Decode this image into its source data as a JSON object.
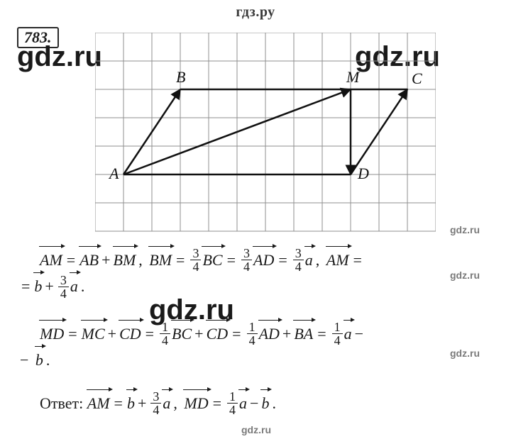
{
  "header": "гдз.ру",
  "problem_number": "783.",
  "watermarks": {
    "big": "gdz.ru",
    "small": "gdz.ru"
  },
  "diagram": {
    "grid": {
      "cell": 40,
      "cols": 12,
      "rows": 7,
      "stroke": "#8f8f8f",
      "stroke_width": 1
    },
    "points": {
      "A": {
        "x": 1.0,
        "y": 5.0,
        "label": "A",
        "labelPos": "left"
      },
      "B": {
        "x": 3.0,
        "y": 2.0,
        "label": "B",
        "labelPos": "top"
      },
      "M": {
        "x": 9.0,
        "y": 2.0,
        "label": "M",
        "labelPos": "top"
      },
      "C": {
        "x": 11.0,
        "y": 2.0,
        "label": "C",
        "labelPos": "topright"
      },
      "D": {
        "x": 9.0,
        "y": 5.0,
        "label": "D",
        "labelPos": "right"
      }
    },
    "edges": [
      {
        "from": "A",
        "to": "B",
        "arrow": true
      },
      {
        "from": "B",
        "to": "M",
        "arrow": false
      },
      {
        "from": "M",
        "to": "C",
        "arrow": false
      },
      {
        "from": "A",
        "to": "M",
        "arrow": true
      },
      {
        "from": "M",
        "to": "D",
        "arrow": true
      },
      {
        "from": "A",
        "to": "D",
        "arrow": false
      },
      {
        "from": "D",
        "to": "C",
        "arrow": true
      }
    ],
    "stroke": "#111111",
    "stroke_width": 2.5,
    "label_font": "italic 22px Times New Roman",
    "label_color": "#111111"
  },
  "math": {
    "line1": {
      "tokens": [
        {
          "t": "indent"
        },
        {
          "t": "vec",
          "v": "AM"
        },
        {
          "t": "eq",
          "v": "="
        },
        {
          "t": "vec",
          "v": "AB"
        },
        {
          "t": "op",
          "v": "+"
        },
        {
          "t": "vec",
          "v": "BM"
        },
        {
          "t": "op",
          "v": ","
        },
        {
          "t": "space"
        },
        {
          "t": "vec",
          "v": "BM"
        },
        {
          "t": "eq",
          "v": "="
        },
        {
          "t": "frac",
          "n": "3",
          "d": "4"
        },
        {
          "t": "vec",
          "v": "BC"
        },
        {
          "t": "eq",
          "v": "="
        },
        {
          "t": "frac",
          "n": "3",
          "d": "4"
        },
        {
          "t": "vec",
          "v": "AD"
        },
        {
          "t": "eq",
          "v": "="
        },
        {
          "t": "frac",
          "n": "3",
          "d": "4"
        },
        {
          "t": "vec",
          "v": "a"
        },
        {
          "t": "op",
          "v": ","
        },
        {
          "t": "space"
        },
        {
          "t": "vec",
          "v": "AM"
        },
        {
          "t": "eq",
          "v": "="
        }
      ],
      "tokens2": [
        {
          "t": "eq",
          "v": "="
        },
        {
          "t": "vec",
          "v": "b"
        },
        {
          "t": "op",
          "v": "+"
        },
        {
          "t": "frac",
          "n": "3",
          "d": "4"
        },
        {
          "t": "vec",
          "v": "a"
        },
        {
          "t": "op",
          "v": "."
        }
      ]
    },
    "line2": {
      "tokens": [
        {
          "t": "indent"
        },
        {
          "t": "vec",
          "v": "MD"
        },
        {
          "t": "eq",
          "v": "="
        },
        {
          "t": "vec",
          "v": "MC"
        },
        {
          "t": "op",
          "v": "+"
        },
        {
          "t": "vec",
          "v": "CD"
        },
        {
          "t": "eq",
          "v": "="
        },
        {
          "t": "frac",
          "n": "1",
          "d": "4"
        },
        {
          "t": "vec",
          "v": "BC"
        },
        {
          "t": "op",
          "v": "+"
        },
        {
          "t": "vec",
          "v": "CD"
        },
        {
          "t": "eq",
          "v": "="
        },
        {
          "t": "frac",
          "n": "1",
          "d": "4"
        },
        {
          "t": "vec",
          "v": "AD"
        },
        {
          "t": "op",
          "v": "+"
        },
        {
          "t": "vec",
          "v": "BA"
        },
        {
          "t": "eq",
          "v": "="
        },
        {
          "t": "frac",
          "n": "1",
          "d": "4"
        },
        {
          "t": "vec",
          "v": "a"
        },
        {
          "t": "op",
          "v": "−"
        }
      ],
      "tokens2": [
        {
          "t": "op",
          "v": "−"
        },
        {
          "t": "space"
        },
        {
          "t": "vec",
          "v": "b"
        },
        {
          "t": "op",
          "v": "."
        }
      ]
    },
    "answer": {
      "label": "Ответ: ",
      "tokens": [
        {
          "t": "vec",
          "v": "AM"
        },
        {
          "t": "eq",
          "v": "="
        },
        {
          "t": "vec",
          "v": "b"
        },
        {
          "t": "op",
          "v": "+"
        },
        {
          "t": "frac",
          "n": "3",
          "d": "4"
        },
        {
          "t": "vec",
          "v": "a"
        },
        {
          "t": "op",
          "v": ","
        },
        {
          "t": "space"
        },
        {
          "t": "vec",
          "v": "MD"
        },
        {
          "t": "eq",
          "v": "="
        },
        {
          "t": "frac",
          "n": "1",
          "d": "4"
        },
        {
          "t": "vec",
          "v": "a"
        },
        {
          "t": "op",
          "v": "−"
        },
        {
          "t": "vec",
          "v": "b"
        },
        {
          "t": "op",
          "v": "."
        }
      ]
    }
  }
}
